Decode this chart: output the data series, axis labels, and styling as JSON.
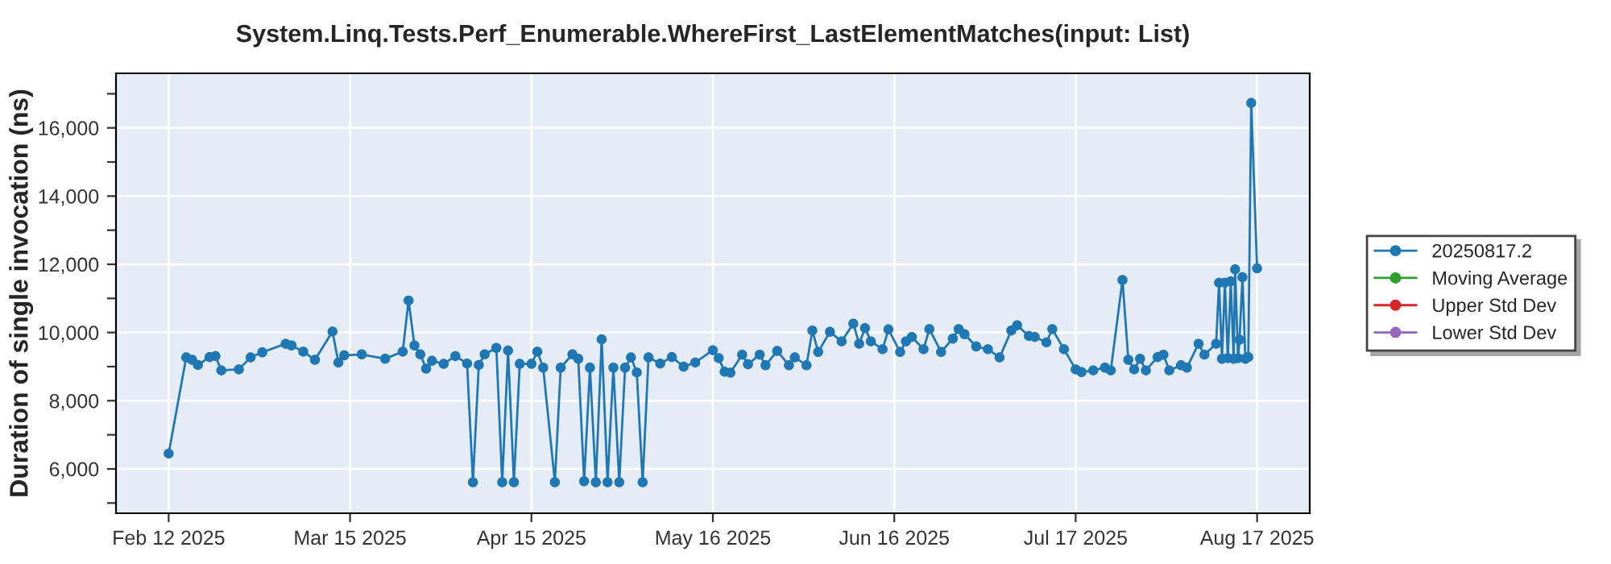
{
  "chart_data": {
    "type": "line",
    "title": "System.Linq.Tests.Perf_Enumerable.WhereFirst_LastElementMatches(input: List)",
    "ylabel": "Duration of single invocation (ns)",
    "x": [
      "2025-02-12",
      "2025-02-15",
      "2025-02-16",
      "2025-02-17",
      "2025-02-19",
      "2025-02-20",
      "2025-02-21",
      "2025-02-24",
      "2025-02-26",
      "2025-02-28",
      "2025-03-04",
      "2025-03-05",
      "2025-03-07",
      "2025-03-09",
      "2025-03-12",
      "2025-03-13",
      "2025-03-14",
      "2025-03-17",
      "2025-03-21",
      "2025-03-24",
      "2025-03-25",
      "2025-03-26",
      "2025-03-27",
      "2025-03-28",
      "2025-03-29",
      "2025-03-31",
      "2025-04-02",
      "2025-04-04",
      "2025-04-05",
      "2025-04-06",
      "2025-04-07",
      "2025-04-09",
      "2025-04-10",
      "2025-04-11",
      "2025-04-12",
      "2025-04-13",
      "2025-04-15",
      "2025-04-16",
      "2025-04-17",
      "2025-04-19",
      "2025-04-20",
      "2025-04-22",
      "2025-04-23",
      "2025-04-24",
      "2025-04-25",
      "2025-04-26",
      "2025-04-27",
      "2025-04-28",
      "2025-04-29",
      "2025-04-30",
      "2025-05-01",
      "2025-05-02",
      "2025-05-03",
      "2025-05-04",
      "2025-05-05",
      "2025-05-07",
      "2025-05-09",
      "2025-05-11",
      "2025-05-13",
      "2025-05-16",
      "2025-05-17",
      "2025-05-18",
      "2025-05-19",
      "2025-05-21",
      "2025-05-22",
      "2025-05-24",
      "2025-05-25",
      "2025-05-27",
      "2025-05-29",
      "2025-05-30",
      "2025-06-01",
      "2025-06-02",
      "2025-06-03",
      "2025-06-05",
      "2025-06-07",
      "2025-06-09",
      "2025-06-10",
      "2025-06-11",
      "2025-06-12",
      "2025-06-14",
      "2025-06-15",
      "2025-06-17",
      "2025-06-18",
      "2025-06-19",
      "2025-06-21",
      "2025-06-22",
      "2025-06-24",
      "2025-06-26",
      "2025-06-27",
      "2025-06-28",
      "2025-06-30",
      "2025-07-02",
      "2025-07-04",
      "2025-07-06",
      "2025-07-07",
      "2025-07-09",
      "2025-07-10",
      "2025-07-12",
      "2025-07-13",
      "2025-07-15",
      "2025-07-17",
      "2025-07-18",
      "2025-07-20",
      "2025-07-22",
      "2025-07-23",
      "2025-07-25",
      "2025-07-26",
      "2025-07-27",
      "2025-07-28",
      "2025-07-29",
      "2025-07-31",
      "2025-08-01",
      "2025-08-02",
      "2025-08-04",
      "2025-08-05",
      "2025-08-07",
      "2025-08-08",
      "2025-08-10",
      "2025-08-10T12:00",
      "2025-08-11",
      "2025-08-11T12:00",
      "2025-08-12",
      "2025-08-12T12:00",
      "2025-08-13",
      "2025-08-13T06:00",
      "2025-08-13T18:00",
      "2025-08-14",
      "2025-08-14T12:00",
      "2025-08-15",
      "2025-08-15T12:00",
      "2025-08-16",
      "2025-08-17"
    ],
    "series": [
      {
        "name": "20250817.2",
        "color": "#1f77b4",
        "values": [
          6450,
          9270,
          9200,
          9050,
          9280,
          9310,
          8890,
          8920,
          9270,
          9420,
          9670,
          9620,
          9440,
          9200,
          10030,
          9120,
          9330,
          9360,
          9230,
          9440,
          10940,
          9620,
          9360,
          8940,
          9170,
          9080,
          9310,
          9090,
          5610,
          9050,
          9360,
          9550,
          5610,
          9470,
          5610,
          9080,
          9080,
          9440,
          8970,
          5610,
          8970,
          9360,
          9230,
          5640,
          8970,
          5610,
          9800,
          5610,
          8970,
          5610,
          8970,
          9270,
          8830,
          5610,
          9270,
          9090,
          9280,
          9000,
          9120,
          9480,
          9250,
          8850,
          8820,
          9350,
          9070,
          9350,
          9040,
          9460,
          9040,
          9270,
          9040,
          10060,
          9430,
          10020,
          9740,
          10260,
          9670,
          10130,
          9740,
          9510,
          10090,
          9430,
          9740,
          9870,
          9510,
          10100,
          9430,
          9820,
          10100,
          9950,
          9590,
          9510,
          9270,
          10060,
          10210,
          9900,
          9870,
          9710,
          10100,
          9510,
          8920,
          8840,
          8890,
          8970,
          8890,
          11540,
          9200,
          8920,
          9230,
          8890,
          9280,
          9350,
          8890,
          9040,
          8970,
          9670,
          9350,
          9670,
          11460,
          9230,
          11460,
          9250,
          11500,
          9230,
          11850,
          9250,
          9790,
          11620,
          9230,
          9280,
          16730,
          11880
        ]
      },
      {
        "name": "Moving Average",
        "color": "#2ca02c",
        "values": [
          null,
          null,
          null,
          null,
          null,
          null,
          null,
          null,
          null,
          null,
          null,
          null,
          null,
          null,
          null,
          null,
          null,
          null,
          null,
          null,
          null,
          null,
          null,
          null,
          null,
          null,
          null,
          null,
          null,
          null,
          null,
          null,
          null,
          null,
          null,
          null,
          null,
          null,
          null,
          null,
          null,
          null,
          null,
          null,
          null,
          null,
          null,
          null,
          null,
          null,
          null,
          null,
          null,
          null,
          null,
          null,
          null,
          null,
          null,
          null,
          null,
          null,
          null,
          null,
          null,
          null,
          null,
          null,
          null,
          null,
          null,
          null,
          null,
          null,
          null,
          null,
          null,
          null,
          null,
          null,
          null,
          null,
          null,
          null,
          null,
          null,
          null,
          null,
          null,
          null,
          null,
          null,
          null,
          null,
          null,
          null,
          null,
          null,
          null,
          null,
          null,
          null,
          null,
          null,
          null,
          null,
          null,
          null,
          null,
          null,
          null,
          null,
          null,
          null,
          null,
          null,
          null,
          null,
          null,
          null,
          null,
          null,
          null,
          null,
          null,
          null,
          null,
          null,
          null,
          null,
          null,
          null
        ]
      },
      {
        "name": "Upper Std Dev",
        "color": "#d62728",
        "values": [
          null,
          null,
          null,
          null,
          null,
          null,
          null,
          null,
          null,
          null,
          null,
          null,
          null,
          null,
          null,
          null,
          null,
          null,
          null,
          null,
          null,
          null,
          null,
          null,
          null,
          null,
          null,
          null,
          null,
          null,
          null,
          null,
          null,
          null,
          null,
          null,
          null,
          null,
          null,
          null,
          null,
          null,
          null,
          null,
          null,
          null,
          null,
          null,
          null,
          null,
          null,
          null,
          null,
          null,
          null,
          null,
          null,
          null,
          null,
          null,
          null,
          null,
          null,
          null,
          null,
          null,
          null,
          null,
          null,
          null,
          null,
          null,
          null,
          null,
          null,
          null,
          null,
          null,
          null,
          null,
          null,
          null,
          null,
          null,
          null,
          null,
          null,
          null,
          null,
          null,
          null,
          null,
          null,
          null,
          null,
          null,
          null,
          null,
          null,
          null,
          null,
          null,
          null,
          null,
          null,
          null,
          null,
          null,
          null,
          null,
          null,
          null,
          null,
          null,
          null,
          null,
          null,
          null,
          null,
          null,
          null,
          null,
          null,
          null,
          null,
          null,
          null,
          null,
          null,
          null,
          null,
          null
        ]
      },
      {
        "name": "Lower Std Dev",
        "color": "#9467bd",
        "values": [
          null,
          null,
          null,
          null,
          null,
          null,
          null,
          null,
          null,
          null,
          null,
          null,
          null,
          null,
          null,
          null,
          null,
          null,
          null,
          null,
          null,
          null,
          null,
          null,
          null,
          null,
          null,
          null,
          null,
          null,
          null,
          null,
          null,
          null,
          null,
          null,
          null,
          null,
          null,
          null,
          null,
          null,
          null,
          null,
          null,
          null,
          null,
          null,
          null,
          null,
          null,
          null,
          null,
          null,
          null,
          null,
          null,
          null,
          null,
          null,
          null,
          null,
          null,
          null,
          null,
          null,
          null,
          null,
          null,
          null,
          null,
          null,
          null,
          null,
          null,
          null,
          null,
          null,
          null,
          null,
          null,
          null,
          null,
          null,
          null,
          null,
          null,
          null,
          null,
          null,
          null,
          null,
          null,
          null,
          null,
          null,
          null,
          null,
          null,
          null,
          null,
          null,
          null,
          null,
          null,
          null,
          null,
          null,
          null,
          null,
          null,
          null,
          null,
          null,
          null,
          null,
          null,
          null,
          null,
          null,
          null,
          null,
          null,
          null,
          null,
          null,
          null,
          null,
          null,
          null,
          null,
          null
        ]
      }
    ],
    "xlim": [
      "2025-02-03",
      "2025-08-26"
    ],
    "xticks": [
      {
        "value": "2025-02-12",
        "label": "Feb 12 2025"
      },
      {
        "value": "2025-03-15",
        "label": "Mar 15 2025"
      },
      {
        "value": "2025-04-15",
        "label": "Apr 15 2025"
      },
      {
        "value": "2025-05-16",
        "label": "May 16 2025"
      },
      {
        "value": "2025-06-16",
        "label": "Jun 16 2025"
      },
      {
        "value": "2025-07-17",
        "label": "Jul 17 2025"
      },
      {
        "value": "2025-08-17",
        "label": "Aug 17 2025"
      }
    ],
    "ylim": [
      4700,
      17600
    ],
    "yticks": [
      {
        "value": 5000,
        "label": null
      },
      {
        "value": 6000,
        "label": "6,000"
      },
      {
        "value": 7000,
        "label": null
      },
      {
        "value": 8000,
        "label": "8,000"
      },
      {
        "value": 9000,
        "label": null
      },
      {
        "value": 10000,
        "label": "10,000"
      },
      {
        "value": 11000,
        "label": null
      },
      {
        "value": 12000,
        "label": "12,000"
      },
      {
        "value": 13000,
        "label": null
      },
      {
        "value": 14000,
        "label": "14,000"
      },
      {
        "value": 15000,
        "label": null
      },
      {
        "value": 16000,
        "label": "16,000"
      },
      {
        "value": 17000,
        "label": null
      }
    ],
    "grid": true,
    "legend": "right",
    "marker": "circle",
    "line_style": "solid"
  }
}
